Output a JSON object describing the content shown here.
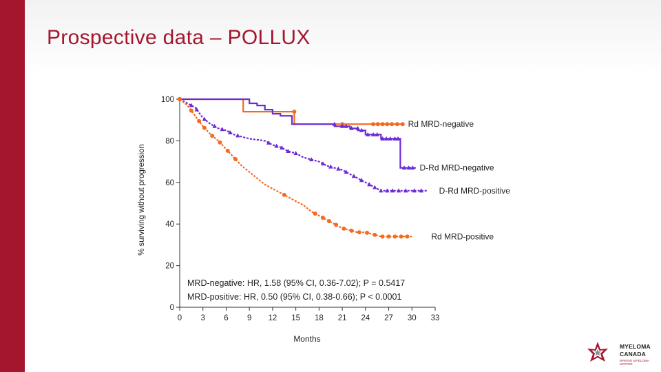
{
  "slide": {
    "title": "Prospective data – POLLUX"
  },
  "colors": {
    "brand": "#a3162e",
    "orange": "#f26b21",
    "purple": "#6b2bd6"
  },
  "logo": {
    "line1": "MYELOMA",
    "line2": "CANADA",
    "line3": "MAKING MYELOMA MATTER"
  },
  "chart_data": {
    "type": "line",
    "ylabel": "% surviving without progression",
    "xlabel": "Months",
    "xlim": [
      0,
      33
    ],
    "ylim": [
      0,
      100
    ],
    "x_ticks": [
      0,
      3,
      6,
      9,
      12,
      15,
      18,
      21,
      24,
      27,
      30,
      33
    ],
    "y_ticks": [
      0,
      20,
      40,
      60,
      80,
      100
    ],
    "grid": false,
    "series": [
      {
        "name": "Rd MRD-negative",
        "color": "#f26b21",
        "style": "solid",
        "marker": "circle",
        "points": [
          [
            0,
            100
          ],
          [
            8.2,
            100
          ],
          [
            8.2,
            94
          ],
          [
            14.8,
            94
          ],
          [
            14.8,
            88
          ],
          [
            23,
            88
          ],
          [
            29,
            88
          ]
        ],
        "censor_x": [
          14.8,
          21,
          25,
          25.6,
          26.2,
          26.8,
          27.4,
          28.1,
          28.8
        ]
      },
      {
        "name": "D-Rd MRD-negative",
        "color": "#6b2bd6",
        "style": "solid",
        "marker": "triangle",
        "points": [
          [
            0,
            100
          ],
          [
            9,
            100
          ],
          [
            9,
            98
          ],
          [
            10,
            98
          ],
          [
            10,
            97
          ],
          [
            11,
            97
          ],
          [
            11,
            95
          ],
          [
            12,
            95
          ],
          [
            12,
            93
          ],
          [
            13,
            93
          ],
          [
            13,
            92
          ],
          [
            14.5,
            92
          ],
          [
            14.5,
            88
          ],
          [
            20,
            88
          ],
          [
            20,
            87
          ],
          [
            22,
            87
          ],
          [
            22,
            86
          ],
          [
            23,
            86
          ],
          [
            23,
            85
          ],
          [
            24,
            85
          ],
          [
            24,
            83
          ],
          [
            26,
            83
          ],
          [
            26,
            81
          ],
          [
            28.5,
            81
          ],
          [
            28.5,
            67
          ],
          [
            30.5,
            67
          ]
        ],
        "censor_x": [
          20,
          21,
          21.5,
          22.2,
          23,
          23.5,
          24.3,
          25,
          25.5,
          26.2,
          26.7,
          27.2,
          27.8,
          28.2,
          29,
          29.6,
          30.1
        ]
      },
      {
        "name": "D-Rd MRD-positive",
        "color": "#6b2bd6",
        "style": "dashed",
        "marker": "triangle",
        "points": [
          [
            0,
            100
          ],
          [
            1,
            98
          ],
          [
            2,
            96
          ],
          [
            3,
            91
          ],
          [
            4,
            88
          ],
          [
            5,
            86
          ],
          [
            6,
            85
          ],
          [
            7,
            83
          ],
          [
            8,
            82
          ],
          [
            9,
            81
          ],
          [
            10,
            80.5
          ],
          [
            11,
            80
          ],
          [
            12,
            78
          ],
          [
            13,
            77
          ],
          [
            14,
            75
          ],
          [
            15,
            74
          ],
          [
            16,
            72
          ],
          [
            17,
            71
          ],
          [
            18,
            70
          ],
          [
            19,
            68
          ],
          [
            20,
            67
          ],
          [
            21,
            66
          ],
          [
            22,
            64
          ],
          [
            23,
            62
          ],
          [
            24,
            60
          ],
          [
            25,
            58
          ],
          [
            26,
            56
          ],
          [
            27,
            56
          ],
          [
            28,
            56
          ],
          [
            32,
            56
          ]
        ],
        "censor_x": [
          1.5,
          2.2,
          3.2,
          4.5,
          5.5,
          6.5,
          7.5,
          11.5,
          12.5,
          13.2,
          14,
          15,
          17,
          18.5,
          19.5,
          20.5,
          21.5,
          22.5,
          23.5,
          24.5,
          25.2,
          26,
          26.8,
          27.5,
          28.3,
          29.2,
          30.3,
          31.2
        ]
      },
      {
        "name": "Rd MRD-positive",
        "color": "#f26b21",
        "style": "dashed",
        "marker": "circle",
        "points": [
          [
            0,
            100
          ],
          [
            1,
            97
          ],
          [
            2,
            92
          ],
          [
            3,
            87
          ],
          [
            4,
            83
          ],
          [
            5,
            80
          ],
          [
            6,
            76
          ],
          [
            7,
            72
          ],
          [
            8,
            68
          ],
          [
            9,
            65
          ],
          [
            10,
            62
          ],
          [
            11,
            59
          ],
          [
            12,
            57
          ],
          [
            13,
            55
          ],
          [
            14,
            53
          ],
          [
            15,
            51
          ],
          [
            16,
            49
          ],
          [
            17,
            46
          ],
          [
            18,
            44
          ],
          [
            19,
            42
          ],
          [
            20,
            40
          ],
          [
            21,
            38
          ],
          [
            22,
            37
          ],
          [
            23,
            36
          ],
          [
            24,
            36
          ],
          [
            25,
            35
          ],
          [
            26,
            34
          ],
          [
            27,
            34
          ],
          [
            28,
            34
          ],
          [
            30,
            34
          ]
        ],
        "censor_x": [
          1.5,
          2.5,
          3.2,
          4.2,
          5.2,
          6.2,
          7.2,
          13.5,
          17.5,
          18.5,
          19.3,
          20.2,
          21.2,
          22.2,
          23.2,
          24.2,
          25.2,
          26.2,
          27,
          27.8,
          28.6,
          29.4
        ]
      }
    ],
    "labels": [
      {
        "text": "Rd MRD-negative",
        "series": "Rd MRD-negative",
        "x": 29.5,
        "y": 88
      },
      {
        "text": "D-Rd MRD-negative",
        "series": "D-Rd MRD-negative",
        "x": 31,
        "y": 67
      },
      {
        "text": "D-Rd MRD-positive",
        "series": "D-Rd MRD-positive",
        "x": 33.5,
        "y": 56
      },
      {
        "text": "Rd MRD-positive",
        "series": "Rd MRD-positive",
        "x": 32.5,
        "y": 34
      }
    ],
    "annotations": [
      "MRD-negative: HR, 1.58 (95% CI, 0.36-7.02); P = 0.5417",
      "MRD-positive: HR, 0.50 (95% CI, 0.38-0.66); P < 0.0001"
    ]
  }
}
